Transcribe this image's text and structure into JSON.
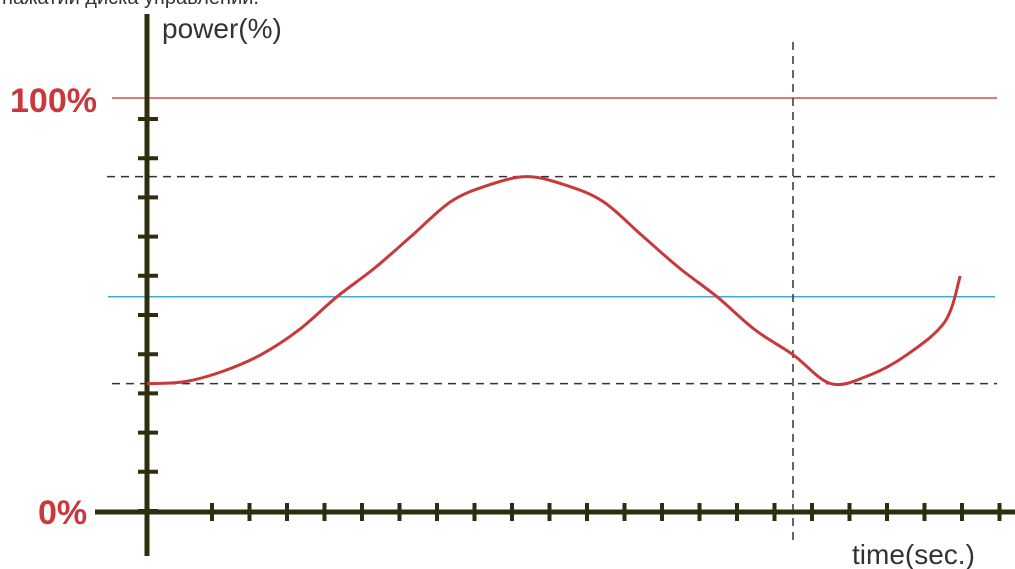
{
  "caption": "нажатии диска управлений.",
  "chart_data": {
    "type": "line",
    "title": "",
    "ylabel": "power(%)",
    "xlabel": "time(sec.)",
    "y_tick_labels": [
      {
        "value": 100,
        "label": "100%"
      },
      {
        "value": 0,
        "label": "0%"
      }
    ],
    "ylim": [
      0,
      100
    ],
    "xlim": [
      0,
      22
    ],
    "grid": false,
    "reference_lines": {
      "max_level": 100,
      "upper_dashed": 81,
      "mean_level": 52,
      "lower_dashed": 31,
      "vertical_dashed_at_x": 17
    },
    "series": [
      {
        "x": [
          0,
          1,
          2,
          3,
          4,
          5,
          6,
          7,
          8,
          9,
          10,
          11,
          12,
          13,
          14,
          15,
          16,
          17,
          18,
          19,
          20,
          21,
          21.4
        ],
        "values": [
          31,
          31.5,
          34,
          38,
          44,
          52,
          59,
          67,
          75,
          79,
          81,
          79,
          75,
          67,
          59,
          52,
          44,
          38,
          31,
          33,
          38,
          46,
          57
        ]
      }
    ],
    "colors": {
      "curve": "#c8383c",
      "max_line": "#d94a4a",
      "mean_line": "#45a8d8",
      "axes": "#2e2e0e",
      "dashed": "#333333",
      "red_labels": "#c8383c",
      "text": "#333333"
    }
  }
}
